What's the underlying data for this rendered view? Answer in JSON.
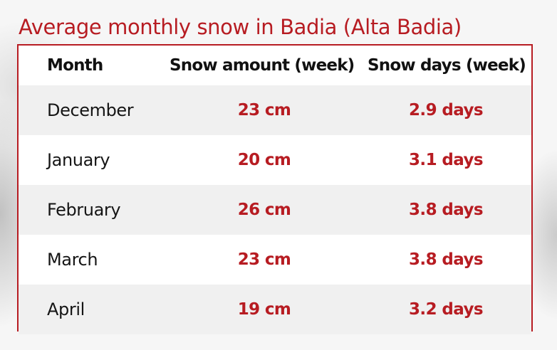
{
  "title": "Average monthly snow in Badia (Alta Badia)",
  "colors": {
    "accent": "#b71c22",
    "row_shade": "#f0f0f0",
    "text": "#151515"
  },
  "chart_data": {
    "type": "table",
    "title": "Average monthly snow in Badia (Alta Badia)",
    "columns": [
      "Month",
      "Snow amount (week)",
      "Snow days (week)"
    ],
    "rows": [
      {
        "month": "December",
        "amount": "23 cm",
        "days": "2.9 days"
      },
      {
        "month": "January",
        "amount": "20 cm",
        "days": "3.1 days"
      },
      {
        "month": "February",
        "amount": "26 cm",
        "days": "3.8 days"
      },
      {
        "month": "March",
        "amount": "23 cm",
        "days": "3.8 days"
      },
      {
        "month": "April",
        "amount": "19 cm",
        "days": "3.2 days"
      }
    ]
  }
}
